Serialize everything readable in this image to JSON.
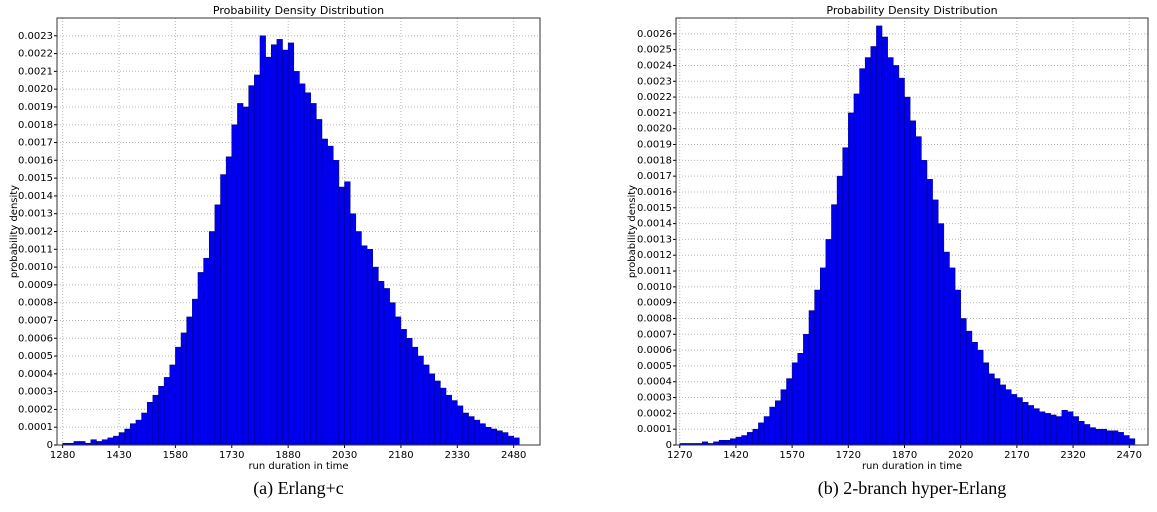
{
  "chart_data": [
    {
      "type": "histogram",
      "title": "Probability Density Distribution",
      "x_label": "run duration in time",
      "y_label": "probability density",
      "caption": "(a) Erlang+c",
      "color": "#0000ee",
      "grid": true,
      "xlim": [
        1265,
        2550
      ],
      "ylim": [
        0,
        0.0024
      ],
      "xticks": [
        1280,
        1430,
        1580,
        1730,
        1880,
        2030,
        2180,
        2330,
        2480
      ],
      "yticks": [
        0,
        0.0001,
        0.0002,
        0.0003,
        0.0004,
        0.0005,
        0.0006,
        0.0007,
        0.0008,
        0.0009,
        {
          "value": 0.001,
          "label": "0.0010"
        },
        0.0011,
        0.0012,
        0.0013,
        0.0014,
        0.0015,
        0.0016,
        0.0017,
        0.0018,
        0.0019,
        {
          "value": 0.002,
          "label": "0.0020"
        },
        0.0021,
        0.0022,
        0.0023
      ],
      "bins": [
        1280,
        1295,
        1310,
        1325,
        1340,
        1355,
        1370,
        1385,
        1400,
        1415,
        1430,
        1445,
        1460,
        1475,
        1490,
        1505,
        1520,
        1535,
        1550,
        1565,
        1580,
        1595,
        1610,
        1625,
        1640,
        1655,
        1670,
        1685,
        1700,
        1715,
        1730,
        1745,
        1760,
        1775,
        1790,
        1805,
        1820,
        1835,
        1850,
        1865,
        1880,
        1895,
        1910,
        1925,
        1940,
        1955,
        1970,
        1985,
        2000,
        2015,
        2030,
        2045,
        2060,
        2075,
        2090,
        2105,
        2120,
        2135,
        2150,
        2165,
        2180,
        2195,
        2210,
        2225,
        2240,
        2255,
        2270,
        2285,
        2300,
        2315,
        2330,
        2345,
        2360,
        2375,
        2390,
        2405,
        2420,
        2435,
        2450,
        2465,
        2480,
        2495
      ],
      "values": [
        1e-05,
        1e-05,
        2e-05,
        2e-05,
        1e-05,
        3e-05,
        2e-05,
        3e-05,
        4e-05,
        5e-05,
        7e-05,
        9e-05,
        0.00012,
        0.00014,
        0.00018,
        0.00024,
        0.00028,
        0.00033,
        0.00038,
        0.00045,
        0.00055,
        0.00063,
        0.00072,
        0.00082,
        0.00097,
        0.00105,
        0.0012,
        0.00135,
        0.00152,
        0.00162,
        0.0018,
        0.00192,
        0.0019,
        0.00202,
        0.00208,
        0.0023,
        0.00218,
        0.00225,
        0.00228,
        0.00222,
        0.00226,
        0.0021,
        0.00203,
        0.00198,
        0.00192,
        0.00183,
        0.00172,
        0.00168,
        0.0016,
        0.00145,
        0.00148,
        0.0013,
        0.0012,
        0.00112,
        0.0011,
        0.001,
        0.00092,
        0.00088,
        0.0008,
        0.00072,
        0.00065,
        0.0006,
        0.00055,
        0.0005,
        0.00045,
        0.0004,
        0.00036,
        0.00032,
        0.00028,
        0.00025,
        0.00022,
        0.00018,
        0.00016,
        0.00014,
        0.00012,
        0.0001,
        9e-05,
        8e-05,
        7e-05,
        5e-05,
        4e-05
      ]
    },
    {
      "type": "histogram",
      "title": "Probability Density Distribution",
      "x_label": "run duration in time",
      "y_label": "probability density",
      "caption": "(b) 2-branch hyper-Erlang",
      "color": "#0000ee",
      "grid": true,
      "xlim": [
        1260,
        2520
      ],
      "ylim": [
        0,
        0.0027
      ],
      "xticks": [
        1270,
        1420,
        1570,
        1720,
        1870,
        2020,
        2170,
        2320,
        2470
      ],
      "yticks": [
        0,
        0.0001,
        0.0002,
        0.0003,
        0.0004,
        0.0005,
        0.0006,
        0.0007,
        0.0008,
        0.0009,
        {
          "value": 0.001,
          "label": "0.0010"
        },
        0.0011,
        0.0012,
        0.0013,
        0.0014,
        0.0015,
        0.0016,
        0.0017,
        0.0018,
        0.0019,
        {
          "value": 0.002,
          "label": "0.0020"
        },
        0.0021,
        0.0022,
        0.0023,
        0.0024,
        0.0025,
        0.0026
      ],
      "bins": [
        1270,
        1285,
        1300,
        1315,
        1330,
        1345,
        1360,
        1375,
        1390,
        1405,
        1420,
        1435,
        1450,
        1465,
        1480,
        1495,
        1510,
        1525,
        1540,
        1555,
        1570,
        1585,
        1600,
        1615,
        1630,
        1645,
        1660,
        1675,
        1690,
        1705,
        1720,
        1735,
        1750,
        1765,
        1780,
        1795,
        1810,
        1825,
        1840,
        1855,
        1870,
        1885,
        1900,
        1915,
        1930,
        1945,
        1960,
        1975,
        1990,
        2005,
        2020,
        2035,
        2050,
        2065,
        2080,
        2095,
        2110,
        2125,
        2140,
        2155,
        2170,
        2185,
        2200,
        2215,
        2230,
        2245,
        2260,
        2275,
        2290,
        2305,
        2320,
        2335,
        2350,
        2365,
        2380,
        2395,
        2410,
        2425,
        2440,
        2455,
        2470,
        2485
      ],
      "values": [
        1e-05,
        1e-05,
        1e-05,
        1e-05,
        2e-05,
        1e-05,
        2e-05,
        3e-05,
        3e-05,
        4e-05,
        5e-05,
        6e-05,
        8e-05,
        0.0001,
        0.00014,
        0.00018,
        0.00024,
        0.00028,
        0.00035,
        0.00042,
        0.00052,
        0.00058,
        0.0007,
        0.00085,
        0.00098,
        0.00112,
        0.0013,
        0.00152,
        0.0017,
        0.00188,
        0.0021,
        0.00222,
        0.00238,
        0.00245,
        0.00252,
        0.00265,
        0.00258,
        0.00245,
        0.0024,
        0.00232,
        0.0022,
        0.00205,
        0.00195,
        0.0018,
        0.00168,
        0.00155,
        0.0014,
        0.00122,
        0.00112,
        0.00098,
        0.0008,
        0.00072,
        0.00065,
        0.0006,
        0.00052,
        0.00045,
        0.00042,
        0.00038,
        0.00035,
        0.00032,
        0.0003,
        0.00027,
        0.00025,
        0.00023,
        0.00021,
        0.0002,
        0.00019,
        0.00018,
        0.00022,
        0.00021,
        0.00018,
        0.00015,
        0.00013,
        0.00011,
        0.0001,
        0.0001,
        9e-05,
        9e-05,
        8e-05,
        6e-05,
        4e-05
      ]
    }
  ]
}
